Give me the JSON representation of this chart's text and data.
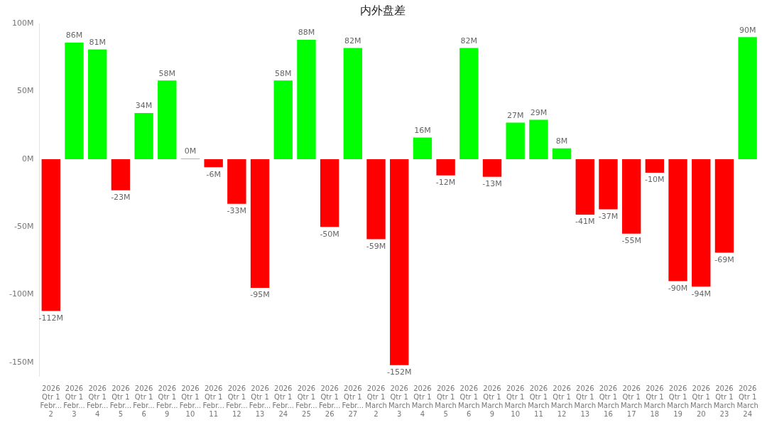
{
  "chart_data": {
    "type": "bar",
    "title": "内外盘差",
    "categories": [
      "2026\nQtr 1\nFebr...\n2",
      "2026\nQtr 1\nFebr...\n3",
      "2026\nQtr 1\nFebr...\n4",
      "2026\nQtr 1\nFebr...\n5",
      "2026\nQtr 1\nFebr...\n6",
      "2026\nQtr 1\nFebr...\n9",
      "2026\nQtr 1\nFebr...\n10",
      "2026\nQtr 1\nFebr...\n11",
      "2026\nQtr 1\nFebr...\n12",
      "2026\nQtr 1\nFebr...\n13",
      "2026\nQtr 1\nFebr...\n24",
      "2026\nQtr 1\nFebr...\n25",
      "2026\nQtr 1\nFebr...\n26",
      "2026\nQtr 1\nFebr...\n27",
      "2026\nQtr 1\nMarch\n2",
      "2026\nQtr 1\nMarch\n3",
      "2026\nQtr 1\nMarch\n4",
      "2026\nQtr 1\nMarch\n5",
      "2026\nQtr 1\nMarch\n6",
      "2026\nQtr 1\nMarch\n9",
      "2026\nQtr 1\nMarch\n10",
      "2026\nQtr 1\nMarch\n11",
      "2026\nQtr 1\nMarch\n12",
      "2026\nQtr 1\nMarch\n13",
      "2026\nQtr 1\nMarch\n16",
      "2026\nQtr 1\nMarch\n17",
      "2026\nQtr 1\nMarch\n18",
      "2026\nQtr 1\nMarch\n19",
      "2026\nQtr 1\nMarch\n20",
      "2026\nQtr 1\nMarch\n23",
      "2026\nQtr 1\nMarch\n24"
    ],
    "values": [
      -112,
      86,
      81,
      -23,
      34,
      58,
      0.4,
      -6,
      -33,
      -95,
      58,
      88,
      -50,
      82,
      -59,
      -152,
      16,
      -12,
      82,
      -13,
      27,
      29,
      8,
      -41,
      -37,
      -55,
      -10,
      -90,
      -94,
      -69,
      90
    ],
    "value_labels": [
      "-112M",
      "86M",
      "81M",
      "-23M",
      "34M",
      "58M",
      "0M",
      "-6M",
      "-33M",
      "-95M",
      "58M",
      "88M",
      "-50M",
      "82M",
      "-59M",
      "-152M",
      "16M",
      "-12M",
      "82M",
      "-13M",
      "27M",
      "29M",
      "8M",
      "-41M",
      "-37M",
      "-55M",
      "-10M",
      "-90M",
      "-94M",
      "-69M",
      "90M"
    ],
    "colors": [
      "#ff0000",
      "#00ff00",
      "#00ff00",
      "#ff0000",
      "#00ff00",
      "#00ff00",
      "#00ff00",
      "#ff0000",
      "#ff0000",
      "#ff0000",
      "#00ff00",
      "#00ff00",
      "#ff0000",
      "#00ff00",
      "#ff0000",
      "#ff0000",
      "#00ff00",
      "#ff0000",
      "#00ff00",
      "#ff0000",
      "#00ff00",
      "#00ff00",
      "#00ff00",
      "#ff0000",
      "#ff0000",
      "#ff0000",
      "#ff0000",
      "#ff0000",
      "#ff0000",
      "#ff0000",
      "#00ff00"
    ],
    "ylim": [
      -160,
      100
    ],
    "yticks": [
      {
        "value": -150,
        "label": "-150M"
      },
      {
        "value": -100,
        "label": "-100M"
      },
      {
        "value": -50,
        "label": "-50M"
      },
      {
        "value": 0,
        "label": "0M"
      },
      {
        "value": 50,
        "label": "50M"
      },
      {
        "value": 100,
        "label": "100M"
      }
    ],
    "grid": false,
    "legend": false
  }
}
